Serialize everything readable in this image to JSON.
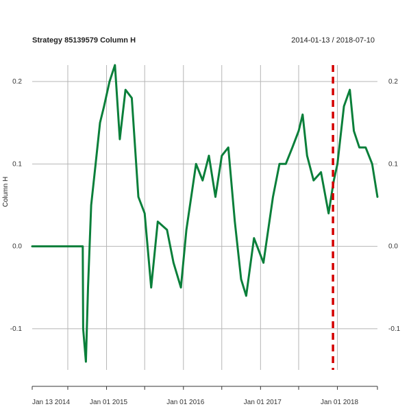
{
  "chart_data": {
    "type": "line",
    "title": "Strategy 85139579 Column H",
    "date_range": "2014-01-13 / 2018-07-10",
    "ylabel": "Column H",
    "xlabel": "",
    "x_range": [
      "2014-01-13",
      "2018-07-10"
    ],
    "ylim": [
      -0.15,
      0.22
    ],
    "y_ticks": [
      {
        "value": -0.1,
        "label": "-0.1"
      },
      {
        "value": 0.0,
        "label": "0.0"
      },
      {
        "value": 0.1,
        "label": "0.1"
      },
      {
        "value": 0.2,
        "label": "0.2"
      }
    ],
    "x_ticks": [
      {
        "date": "2014-01-13",
        "label": "Jan 13 2014"
      },
      {
        "date": "2015-01-01",
        "label": "Jan 01 2015"
      },
      {
        "date": "2016-01-01",
        "label": "Jan 01 2016"
      },
      {
        "date": "2017-01-01",
        "label": "Jan 01 2017"
      },
      {
        "date": "2018-01-01",
        "label": "Jan 01 2018"
      }
    ],
    "grid": true,
    "series": [
      {
        "color": "#0a7f3a",
        "points": [
          [
            "2014-01-13",
            0.0
          ],
          [
            "2014-09-10",
            0.0
          ],
          [
            "2014-09-12",
            -0.1
          ],
          [
            "2014-09-25",
            -0.14
          ],
          [
            "2014-10-05",
            -0.05
          ],
          [
            "2014-10-20",
            0.05
          ],
          [
            "2014-11-10",
            0.1
          ],
          [
            "2014-12-01",
            0.15
          ],
          [
            "2014-12-20",
            0.17
          ],
          [
            "2015-01-15",
            0.2
          ],
          [
            "2015-02-10",
            0.22
          ],
          [
            "2015-03-05",
            0.13
          ],
          [
            "2015-04-01",
            0.19
          ],
          [
            "2015-05-01",
            0.18
          ],
          [
            "2015-06-01",
            0.06
          ],
          [
            "2015-07-01",
            0.04
          ],
          [
            "2015-08-01",
            -0.05
          ],
          [
            "2015-09-01",
            0.03
          ],
          [
            "2015-10-15",
            0.02
          ],
          [
            "2015-11-15",
            -0.02
          ],
          [
            "2015-12-20",
            -0.05
          ],
          [
            "2016-01-15",
            0.02
          ],
          [
            "2016-03-01",
            0.1
          ],
          [
            "2016-04-01",
            0.08
          ],
          [
            "2016-05-01",
            0.11
          ],
          [
            "2016-06-01",
            0.06
          ],
          [
            "2016-07-01",
            0.11
          ],
          [
            "2016-08-01",
            0.12
          ],
          [
            "2016-09-01",
            0.03
          ],
          [
            "2016-10-01",
            -0.04
          ],
          [
            "2016-10-25",
            -0.06
          ],
          [
            "2016-12-01",
            0.01
          ],
          [
            "2017-01-15",
            -0.02
          ],
          [
            "2017-03-01",
            0.06
          ],
          [
            "2017-04-01",
            0.1
          ],
          [
            "2017-05-01",
            0.1
          ],
          [
            "2017-06-01",
            0.12
          ],
          [
            "2017-07-01",
            0.14
          ],
          [
            "2017-07-20",
            0.16
          ],
          [
            "2017-08-10",
            0.11
          ],
          [
            "2017-09-10",
            0.08
          ],
          [
            "2017-10-15",
            0.09
          ],
          [
            "2017-11-20",
            0.04
          ],
          [
            "2017-12-15",
            0.08
          ],
          [
            "2018-01-01",
            0.1
          ],
          [
            "2018-02-01",
            0.17
          ],
          [
            "2018-03-01",
            0.19
          ],
          [
            "2018-03-20",
            0.14
          ],
          [
            "2018-04-15",
            0.12
          ],
          [
            "2018-05-15",
            0.12
          ],
          [
            "2018-06-15",
            0.1
          ],
          [
            "2018-07-10",
            0.06
          ]
        ]
      }
    ],
    "vline": {
      "date": "2017-12-11",
      "color": "#d40000",
      "style": "dashed"
    }
  }
}
